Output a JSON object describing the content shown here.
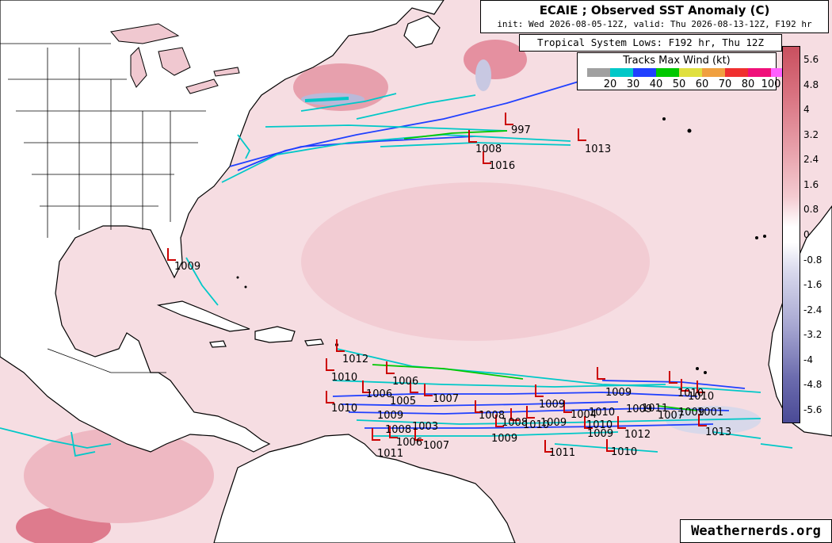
{
  "title": {
    "main": "ECAIE ; Observed SST Anomaly (C)",
    "sub": "init: Wed 2026-08-05-12Z, valid: Thu 2026-08-13-12Z, F192 hr"
  },
  "lows_title": "Tropical System Lows: F192 hr, Thu 12Z",
  "wind_legend": {
    "title": "Tracks Max Wind (kt)",
    "colors": [
      "#a0a0a0",
      "#00c8c8",
      "#2040ff",
      "#00c800",
      "#e0e040",
      "#f0a040",
      "#f03030",
      "#f0107a",
      "#ff60ff"
    ],
    "labels": [
      "20",
      "30",
      "40",
      "50",
      "60",
      "70",
      "80",
      "100"
    ]
  },
  "colorbar": {
    "labels": [
      "5.6",
      "4.8",
      "4",
      "3.2",
      "2.4",
      "1.6",
      "0.8",
      "0",
      "-0.8",
      "-1.6",
      "-2.4",
      "-3.2",
      "-4",
      "-4.8",
      "-5.6"
    ]
  },
  "brand": "Weathernerds.org",
  "colors": {
    "land": "#ffffff",
    "ocean_anomaly": "#f6dde2",
    "warm_patch": "#e796a4",
    "cool_patch": "#b9b9d9",
    "low_marker": "#cc0000"
  },
  "lows": [
    {
      "label": "997"
    },
    {
      "label": "1008"
    },
    {
      "label": "1016"
    },
    {
      "label": "1013"
    },
    {
      "label": "1009"
    },
    {
      "label": "1012"
    },
    {
      "label": "1010"
    },
    {
      "label": "1006"
    },
    {
      "label": "1006"
    },
    {
      "label": "1005"
    },
    {
      "label": "1007"
    },
    {
      "label": "1010"
    },
    {
      "label": "1009"
    },
    {
      "label": "1008"
    },
    {
      "label": "1003"
    },
    {
      "label": "1006"
    },
    {
      "label": "1007"
    },
    {
      "label": "1011"
    },
    {
      "label": "1008"
    },
    {
      "label": "1009"
    },
    {
      "label": "1010"
    },
    {
      "label": "1009"
    },
    {
      "label": "1009"
    },
    {
      "label": "1009"
    },
    {
      "label": "1010"
    },
    {
      "label": "1010"
    },
    {
      "label": "1009"
    },
    {
      "label": "1012"
    },
    {
      "label": "1011"
    },
    {
      "label": "1010"
    },
    {
      "label": "1009"
    },
    {
      "label": "1010"
    },
    {
      "label": "1011"
    },
    {
      "label": "1007"
    },
    {
      "label": "1009"
    },
    {
      "label": "1010"
    },
    {
      "label": "1001"
    },
    {
      "label": "1013"
    },
    {
      "label": "1004"
    },
    {
      "label": "1008"
    }
  ]
}
